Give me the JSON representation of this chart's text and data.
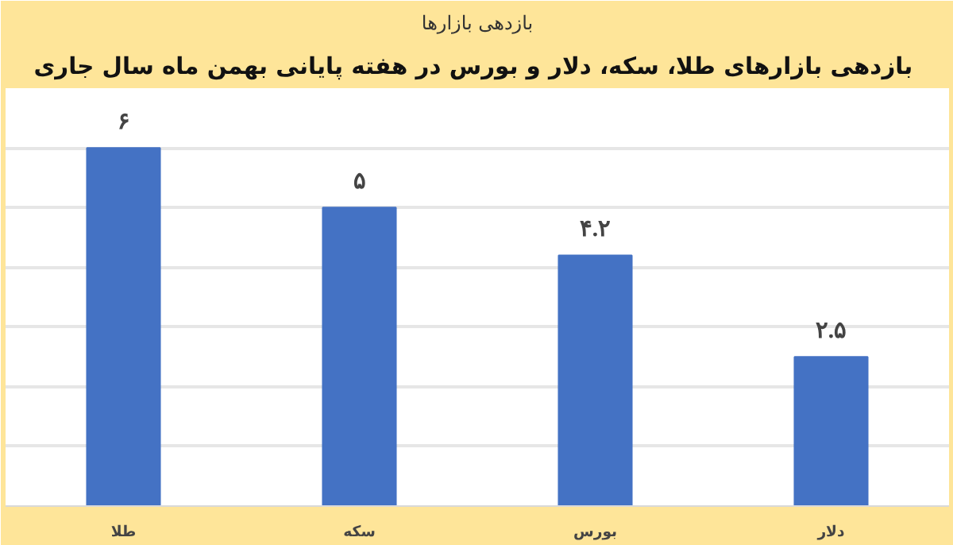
{
  "chart_data": {
    "type": "bar",
    "title": "بازدهی بازارها",
    "subtitle": "بازدهی بازارهای طلا، سکه، دلار و بورس  در هفته پایانی بهمن ماه سال جاری",
    "categories": [
      "طلا",
      "سکه",
      "بورس",
      "دلار"
    ],
    "values": [
      6,
      5,
      4.2,
      2.5
    ],
    "value_labels": [
      "۶",
      "۵",
      "۴.۲",
      "۲.۵"
    ],
    "color": "#4472c4",
    "yticks": [
      {
        "value": 0,
        "label": null
      },
      {
        "value": 1,
        "label": null
      },
      {
        "value": 2,
        "label": null
      },
      {
        "value": 3,
        "label": null
      },
      {
        "value": 4,
        "label": null
      },
      {
        "value": 5,
        "label": null
      },
      {
        "value": 6,
        "label": null
      }
    ],
    "grid": "y",
    "tick_labels": "x"
  }
}
